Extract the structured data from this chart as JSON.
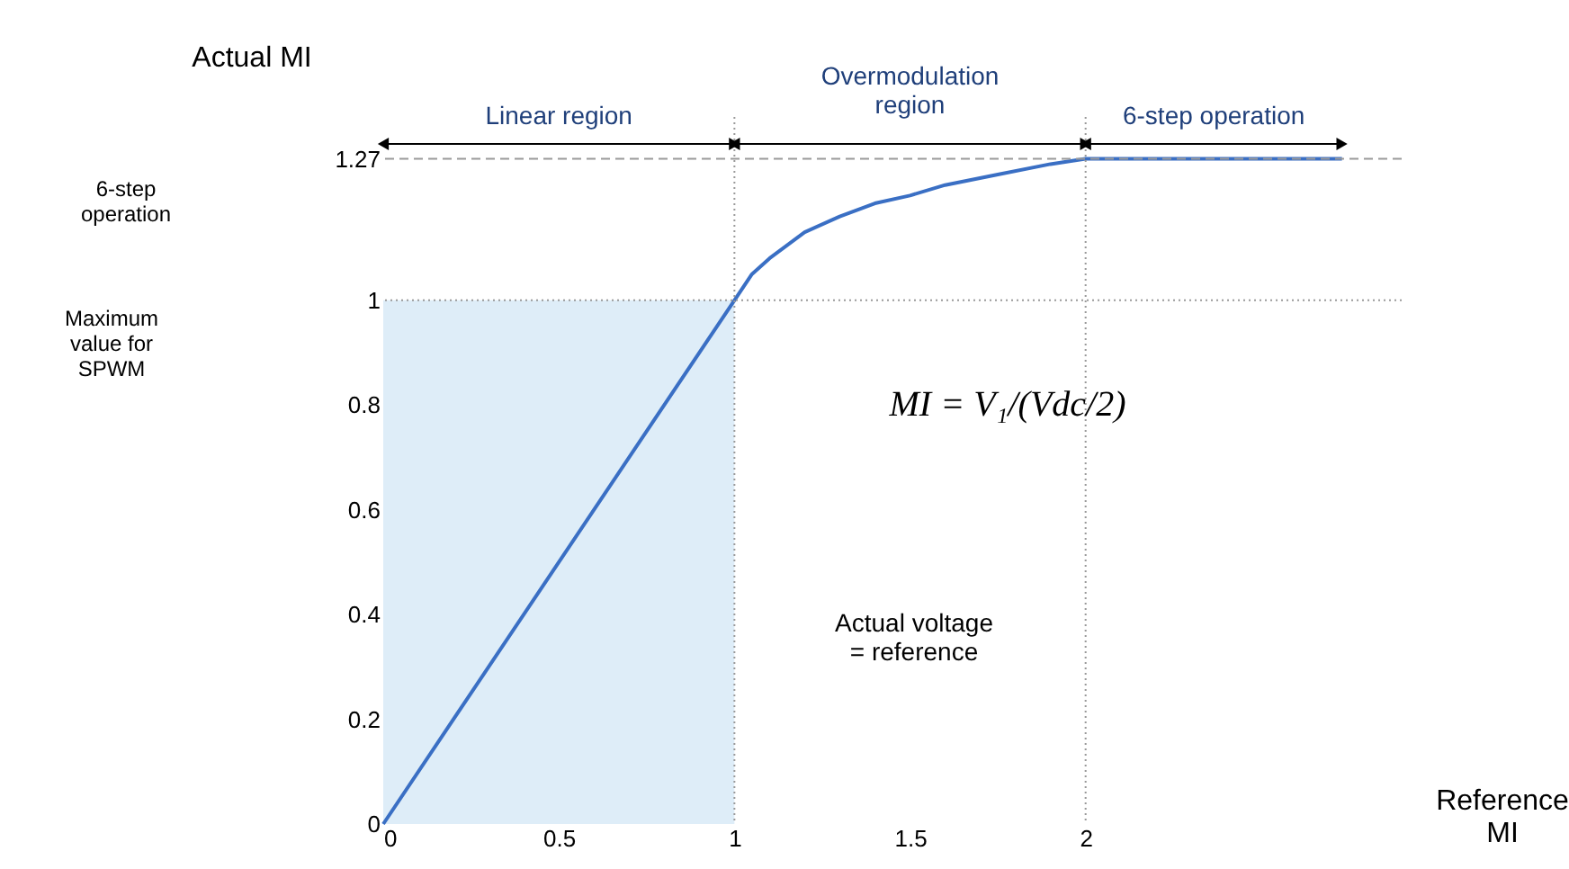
{
  "chart_data": {
    "type": "line",
    "xlabel": "Reference MI",
    "ylabel": "Actual MI",
    "xlim": [
      0,
      2.9
    ],
    "ylim": [
      0,
      1.35
    ],
    "xticks": [
      0,
      0.5,
      1,
      1.5,
      2
    ],
    "yticks": [
      0,
      0.2,
      0.4,
      0.6,
      0.8,
      1,
      1.27
    ],
    "grid": false,
    "series": [
      {
        "type": "area",
        "color": "#deedf8",
        "x": [
          0,
          1
        ],
        "values": [
          1,
          1
        ]
      },
      {
        "color": "#3a6fc4",
        "x": [
          0,
          0.5,
          1,
          1.05,
          1.1,
          1.2,
          1.3,
          1.4,
          1.5,
          1.6,
          1.75,
          1.9,
          2,
          2.3,
          2.73
        ],
        "values": [
          0,
          0.5,
          1,
          1.05,
          1.08,
          1.13,
          1.16,
          1.185,
          1.2,
          1.22,
          1.24,
          1.26,
          1.27,
          1.27,
          1.27
        ]
      }
    ],
    "ref_lines": [
      {
        "axis": "y",
        "value": 1,
        "line_style": "dotted",
        "color": "#999999"
      },
      {
        "axis": "y",
        "value": 1.27,
        "line_style": "dashed",
        "color": "#999999"
      },
      {
        "axis": "x",
        "value": 1,
        "line_style": "dotted",
        "color": "#999999"
      },
      {
        "axis": "x",
        "value": 2,
        "line_style": "dotted",
        "color": "#999999"
      }
    ],
    "annotations": [
      "Linear region",
      "Overmodulation region",
      "6-step operation",
      "6-step operation",
      "Maximum value for SPWM",
      "Actual voltage = reference",
      "MI = V₁/(Vdc/2)"
    ]
  }
}
